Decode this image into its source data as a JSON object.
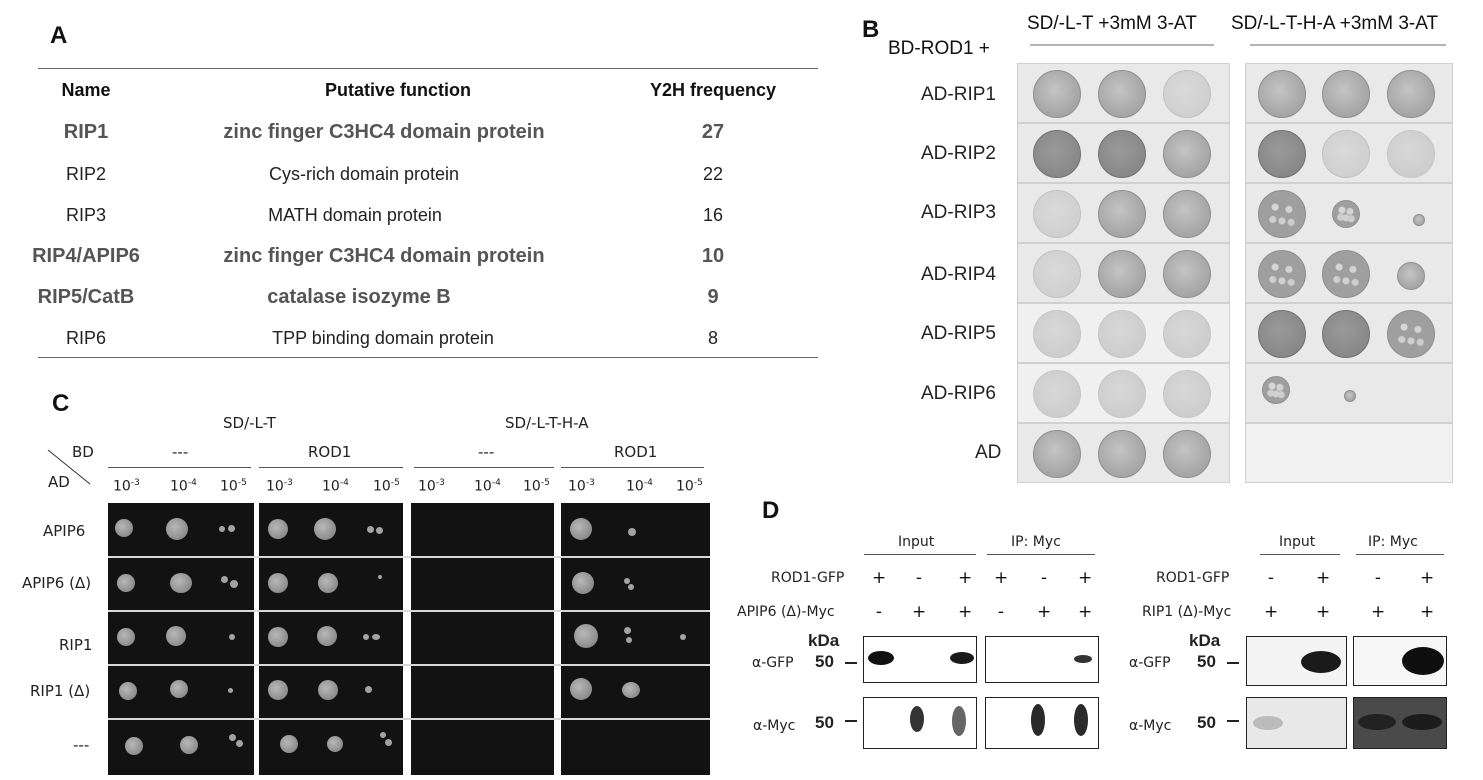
{
  "panels": {
    "a": "A",
    "b": "B",
    "c": "C",
    "d": "D"
  },
  "panel_a": {
    "headers": {
      "name": "Name",
      "function": "Putative function",
      "freq": "Y2H frequency"
    },
    "rows": [
      {
        "name": "RIP1",
        "function": "zinc finger C3HC4 domain protein",
        "freq": "27",
        "bold": true
      },
      {
        "name": "RIP2",
        "function": "Cys-rich domain protein",
        "freq": "22",
        "bold": false
      },
      {
        "name": "RIP3",
        "function": "MATH domain protein",
        "freq": "16",
        "bold": false
      },
      {
        "name": "RIP4/APIP6",
        "function": "zinc finger C3HC4 domain protein",
        "freq": "10",
        "bold": true
      },
      {
        "name": "RIP5/CatB",
        "function": "catalase isozyme B",
        "freq": "9",
        "bold": true
      },
      {
        "name": "RIP6",
        "function": "TPP binding domain protein",
        "freq": "8",
        "bold": false
      }
    ]
  },
  "panel_b": {
    "bait": "BD-ROD1 +",
    "col1_header": "SD/-L-T +3mM 3-AT",
    "col2_header": "SD/-L-T-H-A +3mM 3-AT",
    "rows": [
      "AD-RIP1",
      "AD-RIP2",
      "AD-RIP3",
      "AD-RIP4",
      "AD-RIP5",
      "AD-RIP6",
      "AD"
    ]
  },
  "panel_c": {
    "media1": "SD/-L-T",
    "media2": "SD/-L-T-H-A",
    "bd_label": "BD",
    "ad_label": "AD",
    "bd_groups": [
      "---",
      "ROD1",
      "---",
      "ROD1"
    ],
    "dilutions": [
      "10-3",
      "10-4",
      "10-5"
    ],
    "rows": [
      "APIP6",
      "APIP6 (Δ)",
      "RIP1",
      "RIP1 (Δ)",
      "---"
    ]
  },
  "panel_d": {
    "left": {
      "input": "Input",
      "ip": "IP: Myc",
      "row1_label": "ROD1-GFP",
      "row1_signs": [
        "+",
        "-",
        "+",
        "+",
        "-",
        "+"
      ],
      "row2_label": "APIP6 (Δ)-Myc",
      "row2_signs": [
        "-",
        "+",
        "+",
        "-",
        "+",
        "+"
      ],
      "kda": "kDa",
      "blots": [
        {
          "antibody": "α-GFP",
          "mw": "50"
        },
        {
          "antibody": "α-Myc",
          "mw": "50"
        }
      ]
    },
    "right": {
      "input": "Input",
      "ip": "IP: Myc",
      "row1_label": "ROD1-GFP",
      "row1_signs": [
        "-",
        "+",
        "-",
        "+"
      ],
      "row2_label": "RIP1 (Δ)-Myc",
      "row2_signs": [
        "+",
        "+",
        "+",
        "+"
      ],
      "kda": "kDa",
      "blots": [
        {
          "antibody": "α-GFP",
          "mw": "50"
        },
        {
          "antibody": "α-Myc",
          "mw": "50"
        }
      ]
    }
  }
}
